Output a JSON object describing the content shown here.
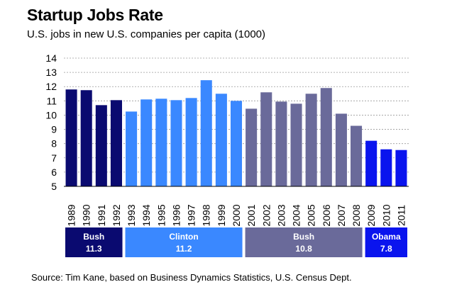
{
  "chart_data": {
    "type": "bar",
    "title": "Startup Jobs Rate",
    "subtitle": "U.S. jobs in new U.S. companies per capita (1000)",
    "xlabel": "",
    "ylabel": "",
    "categories": [
      "1989",
      "1990",
      "1991",
      "1992",
      "1993",
      "1994",
      "1995",
      "1996",
      "1997",
      "1998",
      "1999",
      "2000",
      "2001",
      "2002",
      "2003",
      "2004",
      "2005",
      "2006",
      "2007",
      "2008",
      "2009",
      "2010",
      "2011"
    ],
    "values": [
      11.8,
      11.75,
      10.7,
      11.05,
      10.25,
      11.1,
      11.15,
      11.05,
      11.2,
      12.45,
      11.5,
      11.0,
      10.45,
      11.6,
      10.95,
      10.8,
      11.5,
      11.9,
      10.1,
      9.25,
      8.2,
      7.6,
      7.55
    ],
    "ylim": [
      5,
      14
    ],
    "yticks": [
      5,
      6,
      7,
      8,
      9,
      10,
      11,
      12,
      13,
      14
    ],
    "grid": true,
    "colors": {
      "Bush (1989-1992)": "#0a0a70",
      "Clinton": "#3a88ff",
      "Bush (2001-2008)": "#6a6a9a",
      "Obama": "#0a14ee"
    },
    "bar_colors": [
      "#0a0a70",
      "#0a0a70",
      "#0a0a70",
      "#0a0a70",
      "#3a88ff",
      "#3a88ff",
      "#3a88ff",
      "#3a88ff",
      "#3a88ff",
      "#3a88ff",
      "#3a88ff",
      "#3a88ff",
      "#6a6a9a",
      "#6a6a9a",
      "#6a6a9a",
      "#6a6a9a",
      "#6a6a9a",
      "#6a6a9a",
      "#6a6a9a",
      "#6a6a9a",
      "#0a14ee",
      "#0a14ee",
      "#0a14ee"
    ],
    "panels": [
      {
        "name": "Bush",
        "value": "11.3",
        "from": 0,
        "to": 3,
        "color": "#0a0a70"
      },
      {
        "name": "Clinton",
        "value": "11.2",
        "from": 4,
        "to": 11,
        "color": "#3a88ff"
      },
      {
        "name": "Bush",
        "value": "10.8",
        "from": 12,
        "to": 19,
        "color": "#6a6a9a"
      },
      {
        "name": "Obama",
        "value": "7.8",
        "from": 20,
        "to": 22,
        "color": "#0a14ee"
      }
    ],
    "source": "Source: Tim Kane, based on Business Dynamics Statistics, U.S. Census Dept."
  }
}
